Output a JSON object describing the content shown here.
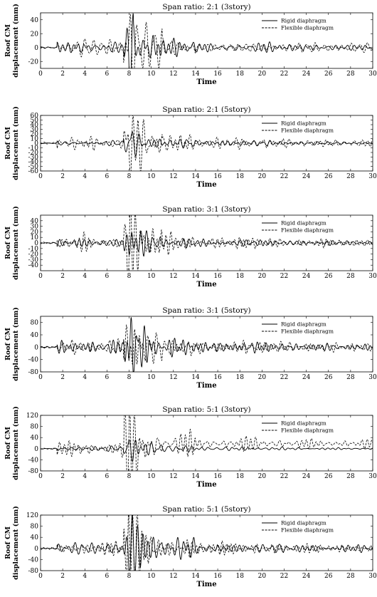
{
  "chart_data": [
    {
      "type": "line",
      "title": "Span ratio: 2:1 (3story)",
      "xlabel": "Time",
      "ylabel": [
        "Roof CM",
        "displacement (mm)"
      ],
      "xlim": [
        0,
        30
      ],
      "ylim": [
        -30,
        50
      ],
      "xticks": [
        0,
        2,
        4,
        6,
        8,
        10,
        12,
        14,
        16,
        18,
        20,
        22,
        24,
        26,
        28,
        30
      ],
      "yticks": [
        -20,
        0,
        20,
        40
      ],
      "grid": false,
      "legend": "top-right",
      "series": [
        {
          "name": "Rigid diaphragm",
          "style": "solid",
          "peak": 30,
          "drift": 0
        },
        {
          "name": "Flexible diaphragm",
          "style": "dashed",
          "peak": 38,
          "drift": 0
        }
      ]
    },
    {
      "type": "line",
      "title": "Span ratio: 2:1 (5story)",
      "xlabel": "Time",
      "ylabel": [
        "Roof CM",
        "displacement (mm)"
      ],
      "xlim": [
        0,
        30
      ],
      "ylim": [
        -60,
        60
      ],
      "xticks": [
        0,
        2,
        4,
        6,
        8,
        10,
        12,
        14,
        16,
        18,
        20,
        22,
        24,
        26,
        28,
        30
      ],
      "yticks": [
        -60,
        -50,
        -40,
        -30,
        -20,
        -10,
        0,
        10,
        20,
        30,
        40,
        50,
        60
      ],
      "grid": false,
      "legend": "top-right",
      "series": [
        {
          "name": "Rigid diaphragm",
          "style": "solid",
          "peak": 22,
          "drift": 0
        },
        {
          "name": "Flexible diaphragm",
          "style": "dashed",
          "peak": 53,
          "drift": 0
        }
      ]
    },
    {
      "type": "line",
      "title": "Span ratio: 3:1 (3story)",
      "xlabel": "Time",
      "ylabel": [
        "Roof CM",
        "displacement (mm)"
      ],
      "xlim": [
        0,
        30
      ],
      "ylim": [
        -50,
        50
      ],
      "xticks": [
        0,
        2,
        4,
        6,
        8,
        10,
        12,
        14,
        16,
        18,
        20,
        22,
        24,
        26,
        28,
        30
      ],
      "yticks": [
        -40,
        -30,
        -20,
        -10,
        0,
        10,
        20,
        30,
        40
      ],
      "grid": false,
      "legend": "top-right",
      "series": [
        {
          "name": "Rigid diaphragm",
          "style": "solid",
          "peak": 32,
          "drift": 0
        },
        {
          "name": "Flexible diaphragm",
          "style": "dashed",
          "peak": 45,
          "drift": 0
        }
      ]
    },
    {
      "type": "line",
      "title": "Span ratio: 3:1 (5story)",
      "xlabel": "Time",
      "ylabel": [
        "Roof CM",
        "displacement (mm)"
      ],
      "xlim": [
        0,
        30
      ],
      "ylim": [
        -80,
        100
      ],
      "xticks": [
        0,
        2,
        4,
        6,
        8,
        10,
        12,
        14,
        16,
        18,
        20,
        22,
        24,
        26,
        28,
        30
      ],
      "yticks": [
        -80,
        -40,
        0,
        40,
        80
      ],
      "grid": false,
      "legend": "top-right",
      "series": [
        {
          "name": "Rigid diaphragm",
          "style": "solid",
          "peak": 75,
          "drift": 0
        },
        {
          "name": "Flexible diaphragm",
          "style": "dashed",
          "peak": 88,
          "drift": 0
        }
      ]
    },
    {
      "type": "line",
      "title": "Span ratio: 5:1 (3story)",
      "xlabel": "Time",
      "ylabel": [
        "Roof CM",
        "displacement (mm)"
      ],
      "xlim": [
        0,
        30
      ],
      "ylim": [
        -80,
        120
      ],
      "xticks": [
        0,
        2,
        4,
        6,
        8,
        10,
        12,
        14,
        16,
        18,
        20,
        22,
        24,
        26,
        28,
        30
      ],
      "yticks": [
        -80,
        -40,
        0,
        40,
        80,
        120
      ],
      "grid": false,
      "legend": "top-right",
      "series": [
        {
          "name": "Rigid diaphragm",
          "style": "solid",
          "peak": 28,
          "drift": 0
        },
        {
          "name": "Flexible diaphragm",
          "style": "dashed",
          "peak": 98,
          "drift": 18
        }
      ]
    },
    {
      "type": "line",
      "title": "Span ratio: 5:1 (5story)",
      "xlabel": "Time",
      "ylabel": [
        "Roof CM",
        "displacement (mm)"
      ],
      "xlim": [
        0,
        30
      ],
      "ylim": [
        -80,
        120
      ],
      "xticks": [
        0,
        2,
        4,
        6,
        8,
        10,
        12,
        14,
        16,
        18,
        20,
        22,
        24,
        26,
        28,
        30
      ],
      "yticks": [
        -80,
        -40,
        0,
        40,
        80,
        120
      ],
      "grid": false,
      "legend": "top-right",
      "series": [
        {
          "name": "Rigid diaphragm",
          "style": "solid",
          "peak": 82,
          "drift": 0
        },
        {
          "name": "Flexible diaphragm",
          "style": "dashed",
          "peak": 92,
          "drift": 0
        }
      ]
    }
  ]
}
